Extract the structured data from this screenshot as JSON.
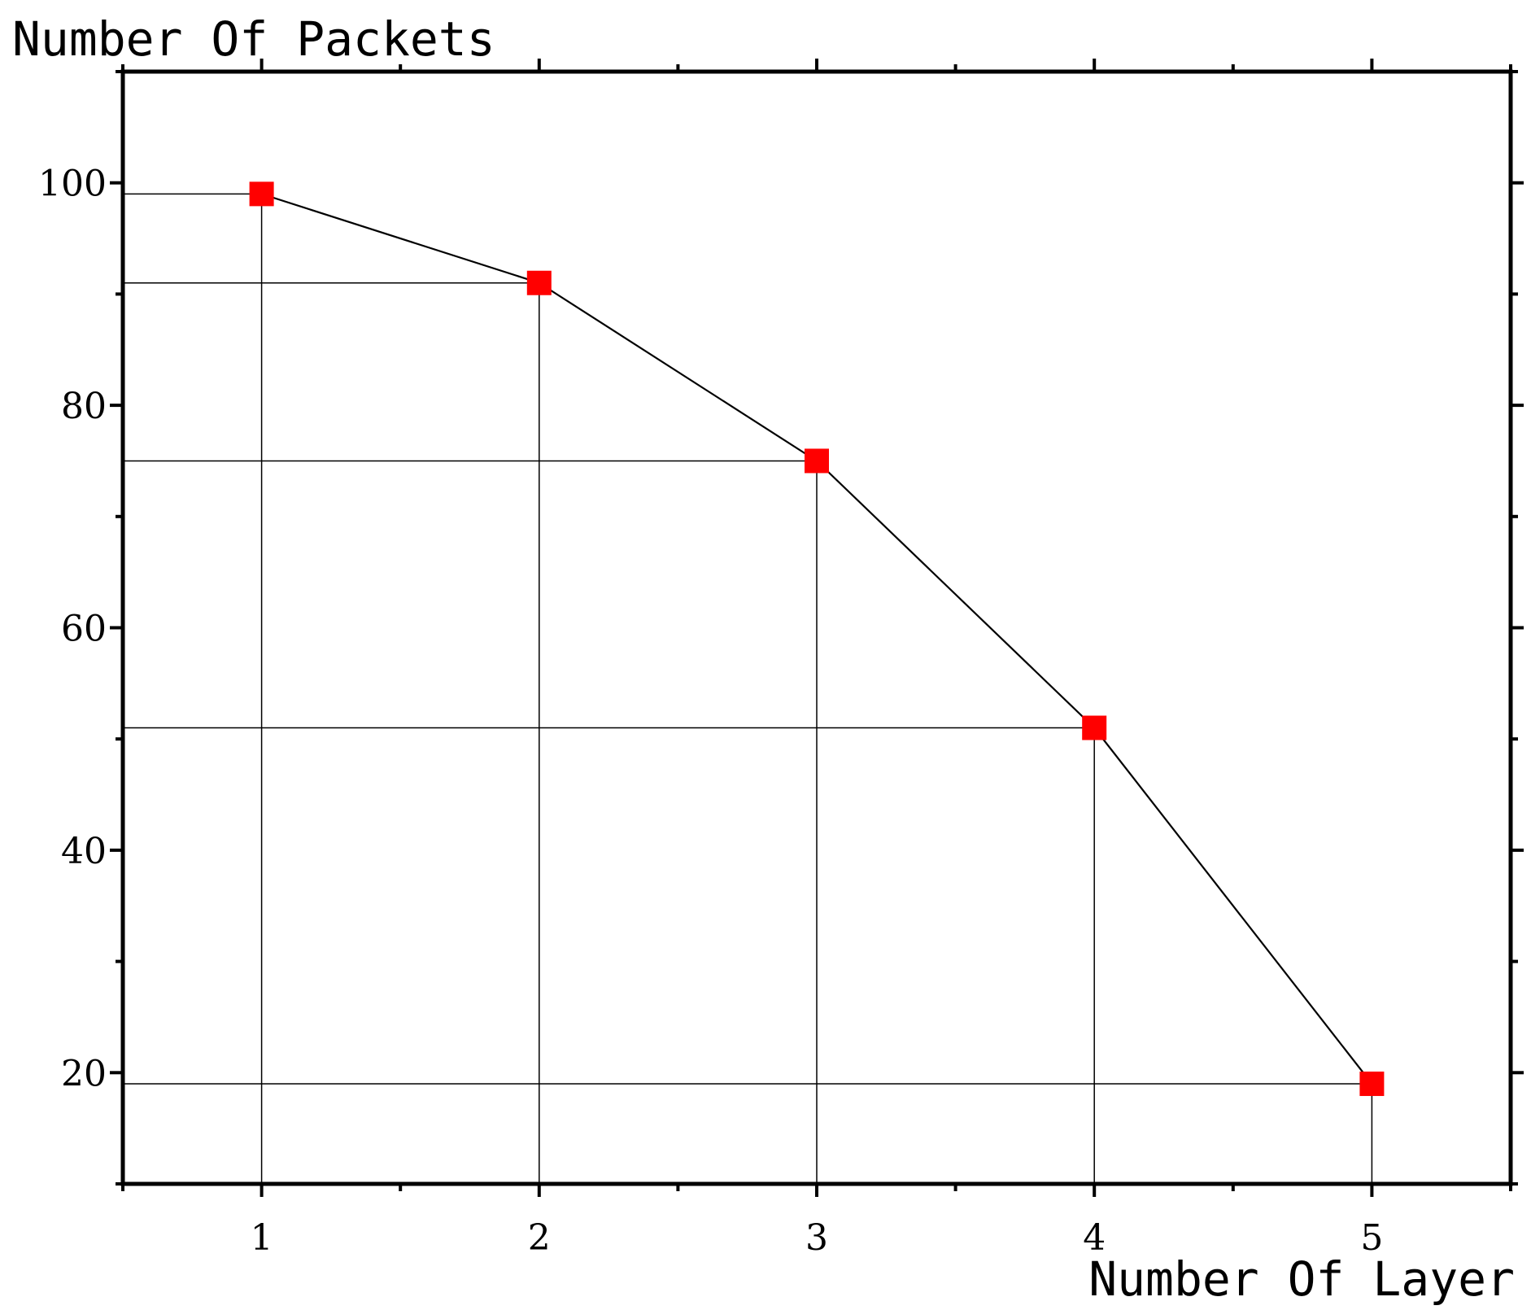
{
  "chart_data": {
    "type": "line",
    "title": "",
    "xlabel": "Number Of Layer",
    "ylabel": "Number Of Packets",
    "xlim": [
      0.5,
      5.5
    ],
    "ylim": [
      10,
      110
    ],
    "x_ticks": [
      1,
      2,
      3,
      4,
      5
    ],
    "y_ticks": [
      20,
      40,
      60,
      80,
      100
    ],
    "grid": false,
    "drop_lines": true,
    "series": [
      {
        "marker": "square",
        "marker_color": "#ff0000",
        "line_color": "#000000",
        "x": [
          1,
          2,
          3,
          4,
          5
        ],
        "y": [
          99,
          91,
          75,
          51,
          19
        ]
      }
    ]
  }
}
